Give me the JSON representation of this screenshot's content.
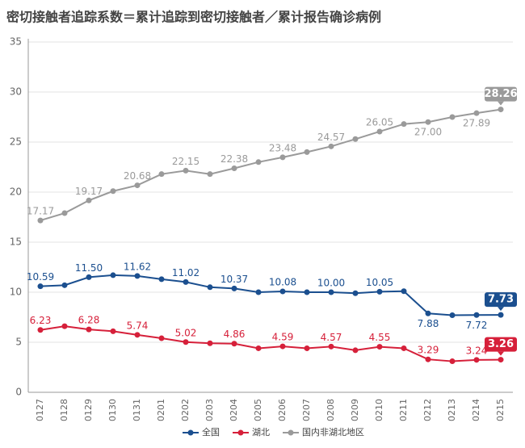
{
  "chart_data": {
    "type": "line",
    "title": "密切接触者追踪系数＝累计追踪到密切接触者／累计报告确诊病例",
    "categories": [
      "0127",
      "0128",
      "0129",
      "0130",
      "0131",
      "0201",
      "0202",
      "0203",
      "0204",
      "0205",
      "0206",
      "0207",
      "0208",
      "0209",
      "0210",
      "0211",
      "0212",
      "0213",
      "0214",
      "0215"
    ],
    "ylim": [
      0,
      35
    ],
    "yticks": [
      0,
      5,
      10,
      15,
      20,
      25,
      30,
      35
    ],
    "grid": true,
    "legend": "bottom",
    "series": [
      {
        "name": "全国",
        "color": "#1b4f8f",
        "values": [
          10.59,
          10.7,
          11.5,
          11.7,
          11.62,
          11.3,
          11.02,
          10.5,
          10.37,
          10.0,
          10.08,
          10.0,
          10.0,
          9.9,
          10.05,
          10.1,
          7.88,
          7.7,
          7.72,
          7.73
        ],
        "value_labels": [
          "10.59",
          null,
          "11.50",
          null,
          "11.62",
          null,
          "11.02",
          null,
          "10.37",
          null,
          "10.08",
          null,
          "10.00",
          null,
          "10.05",
          null,
          "7.88",
          null,
          "7.72",
          "7.73"
        ]
      },
      {
        "name": "湖北",
        "color": "#d6203a",
        "values": [
          6.23,
          6.6,
          6.28,
          6.1,
          5.74,
          5.4,
          5.02,
          4.9,
          4.86,
          4.4,
          4.59,
          4.4,
          4.57,
          4.2,
          4.55,
          4.4,
          3.29,
          3.1,
          3.24,
          3.26
        ],
        "value_labels": [
          "6.23",
          null,
          "6.28",
          null,
          "5.74",
          null,
          "5.02",
          null,
          "4.86",
          null,
          "4.59",
          null,
          "4.57",
          null,
          "4.55",
          null,
          "3.29",
          null,
          "3.24",
          "3.26"
        ]
      },
      {
        "name": "国内非湖北地区",
        "color": "#9a9a9a",
        "values": [
          17.17,
          17.9,
          19.17,
          20.1,
          20.68,
          21.8,
          22.15,
          21.8,
          22.38,
          23.0,
          23.48,
          24.0,
          24.57,
          25.3,
          26.05,
          26.8,
          27.0,
          27.5,
          27.89,
          28.26
        ],
        "value_labels": [
          "17.17",
          null,
          "19.17",
          null,
          "20.68",
          null,
          "22.15",
          null,
          "22.38",
          null,
          "23.48",
          null,
          "24.57",
          null,
          "26.05",
          null,
          "27.00",
          null,
          "27.89",
          "28.26"
        ]
      }
    ]
  }
}
